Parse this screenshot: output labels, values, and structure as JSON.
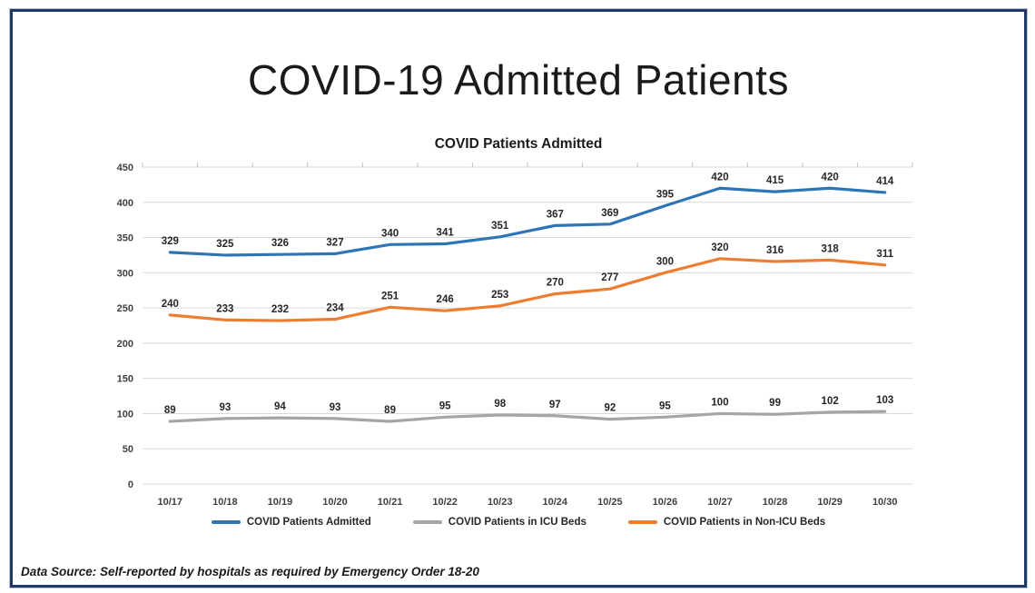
{
  "page": {
    "title": "COVID-19 Admitted Patients",
    "footer": "Data Source: Self-reported by hospitals as required by Emergency Order 18-20"
  },
  "colors": {
    "frame_border": "#1F3864",
    "gridline": "#D9D9D9",
    "axis_tick": "#BFBFBF",
    "axis_text": "#404040",
    "data_label_text": "#262626",
    "series_blue": "#2E75B6",
    "series_gray": "#A5A5A5",
    "series_orange": "#ED7D31"
  },
  "chart_data": {
    "type": "line",
    "title": "COVID Patients Admitted",
    "xlabel": "",
    "ylabel": "",
    "ylim": [
      0,
      450
    ],
    "ytick_step": 50,
    "yticks": [
      0,
      50,
      100,
      150,
      200,
      250,
      300,
      350,
      400,
      450
    ],
    "grid": true,
    "data_labels": true,
    "legend_position": "bottom",
    "categories": [
      "10/17",
      "10/18",
      "10/19",
      "10/20",
      "10/21",
      "10/22",
      "10/23",
      "10/24",
      "10/25",
      "10/26",
      "10/27",
      "10/28",
      "10/29",
      "10/30"
    ],
    "series": [
      {
        "name": "COVID Patients Admitted",
        "color": "#2E75B6",
        "values": [
          329,
          325,
          326,
          327,
          340,
          341,
          351,
          367,
          369,
          395,
          420,
          415,
          420,
          414
        ]
      },
      {
        "name": "COVID Patients in ICU Beds",
        "color": "#A5A5A5",
        "values": [
          89,
          93,
          94,
          93,
          89,
          95,
          98,
          97,
          92,
          95,
          100,
          99,
          102,
          103
        ]
      },
      {
        "name": "COVID Patients in Non-ICU Beds",
        "color": "#ED7D31",
        "values": [
          240,
          233,
          232,
          234,
          251,
          246,
          253,
          270,
          277,
          300,
          320,
          316,
          318,
          311
        ]
      }
    ]
  }
}
